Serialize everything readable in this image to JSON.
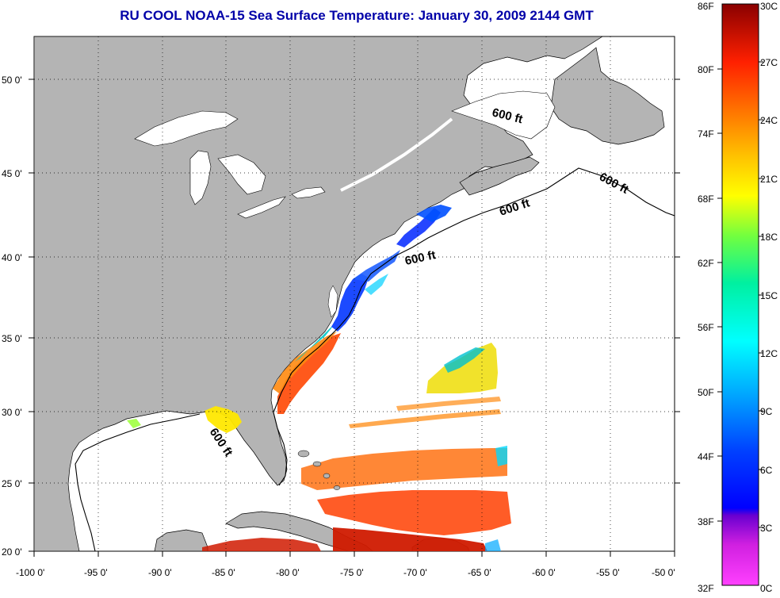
{
  "title": "RU COOL  NOAA-15  Sea Surface Temperature:  January 30, 2009 2144 GMT",
  "colors": {
    "land": "#b4b4b4",
    "ocean_no_data": "#ffffff",
    "title": "#0000a8",
    "coastline": "#000000"
  },
  "axes": {
    "lon_labels": [
      "-100 0'",
      "-95 0'",
      "-90 0'",
      "-85 0'",
      "-80 0'",
      "-75 0'",
      "-70 0'",
      "-65 0'",
      "-60 0'",
      "-55 0'",
      "-50 0'"
    ],
    "lat_labels": [
      "50 0'",
      "45 0'",
      "40 0'",
      "35 0'",
      "30 0'",
      "25 0'",
      "20 0'"
    ],
    "grid": "dotted"
  },
  "contour_labels": [
    "600 ft",
    "600 ft",
    "600 ft",
    "600 ft",
    "600 ft"
  ],
  "colorbar": {
    "fahrenheit": [
      "86F",
      "80F",
      "74F",
      "68F",
      "62F",
      "56F",
      "50F",
      "44F",
      "38F",
      "32F"
    ],
    "celsius": [
      "30C",
      "27C",
      "24C",
      "21C",
      "18C",
      "15C",
      "12C",
      "9C",
      "6C",
      "3C",
      "0C"
    ],
    "range_celsius": [
      0,
      30
    ]
  }
}
